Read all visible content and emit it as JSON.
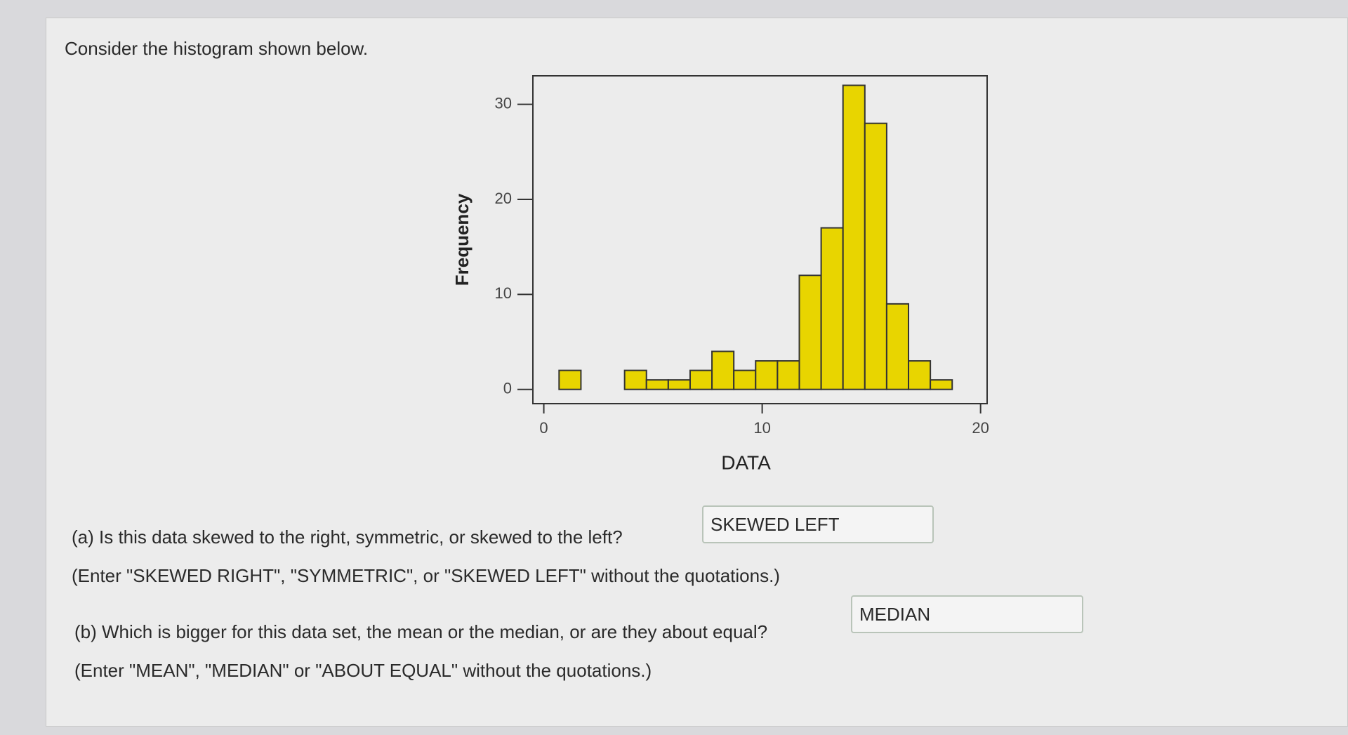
{
  "intro": "Consider the histogram shown below.",
  "chart_data": {
    "type": "histogram",
    "xlabel": "DATA",
    "ylabel": "Frequency",
    "bins": [
      0.7,
      1.7,
      2.7,
      3.7,
      4.7,
      5.7,
      6.7,
      7.7,
      8.7,
      9.7,
      10.7,
      11.7,
      12.7,
      13.7,
      14.7,
      15.7,
      16.7,
      17.7,
      18.7
    ],
    "values": [
      2,
      0,
      0,
      2,
      1,
      1,
      2,
      4,
      2,
      3,
      3,
      12,
      17,
      32,
      28,
      9,
      3,
      1
    ],
    "color": "#e8d500",
    "xlim": [
      -0.5,
      20.3
    ],
    "xticks": [
      0,
      10,
      20
    ],
    "ylim": [
      -1.5,
      33
    ],
    "yticks": [
      0,
      10,
      20,
      30
    ]
  },
  "questions": [
    {
      "question": "(a) Is this data skewed to the right, symmetric, or skewed to the left?",
      "answer": "SKEWED LEFT",
      "hint": "(Enter \"SKEWED RIGHT\", \"SYMMETRIC\", or \"SKEWED LEFT\" without the quotations.)"
    },
    {
      "question": "(b) Which is bigger for this data set, the mean or the median, or are they about equal?",
      "answer": "MEDIAN",
      "hint": "(Enter \"MEAN\", \"MEDIAN\" or \"ABOUT EQUAL\" without the quotations.)"
    }
  ]
}
